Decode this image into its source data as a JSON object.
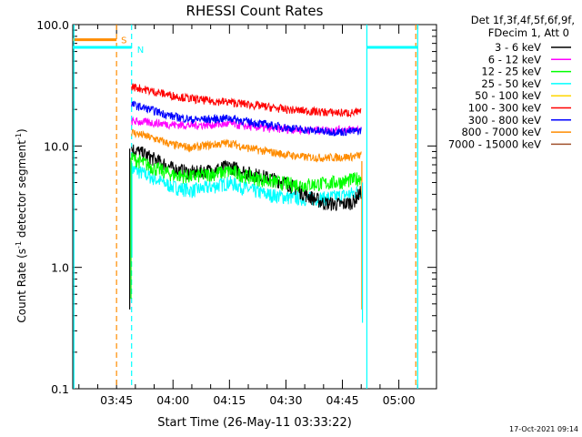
{
  "chart_data": {
    "type": "line",
    "title": "RHESSI Count Rates",
    "xlabel": "Start Time (26-May-11 03:33:22)",
    "ylabel_main": "Count Rate (s",
    "ylabel_sup1": "-1",
    "ylabel_mid": " detector segment",
    "ylabel_sup2": "-1",
    "ylabel_end": ")",
    "y_scale": "log",
    "ylim": [
      0.1,
      100
    ],
    "xlim": [
      "03:33:22",
      "05:10:00"
    ],
    "x_ticks": [
      "03:45",
      "04:00",
      "04:15",
      "04:30",
      "04:45",
      "05:00"
    ],
    "y_ticks": [
      "0.1",
      "1.0",
      "10.0",
      "100.0"
    ],
    "legend_position": "right",
    "legend_header": [
      "Det 1f,3f,4f,5f,6f,9f,",
      "FDecim 1, Att 0"
    ],
    "series": [
      {
        "name": "3 - 6 keV",
        "color": "#000000",
        "x": [
          "03:49",
          "03:55",
          "04:00",
          "04:05",
          "04:10",
          "04:15",
          "04:20",
          "04:25",
          "04:30",
          "04:35",
          "04:40",
          "04:45",
          "04:48",
          "04:50"
        ],
        "values": [
          9.5,
          7.8,
          6.5,
          6.0,
          6.3,
          6.8,
          6.0,
          5.5,
          5.0,
          4.0,
          3.4,
          3.3,
          3.5,
          4.2
        ]
      },
      {
        "name": "6 - 12 keV",
        "color": "#ff00ff",
        "x": [
          "03:49",
          "03:55",
          "04:00",
          "04:05",
          "04:10",
          "04:15",
          "04:20",
          "04:25",
          "04:30",
          "04:35",
          "04:40",
          "04:45",
          "04:48",
          "04:50"
        ],
        "values": [
          16,
          15.5,
          15,
          14.8,
          15,
          15.2,
          14.5,
          14,
          13.8,
          13.6,
          13.5,
          13.6,
          13.7,
          13.8
        ]
      },
      {
        "name": "12 - 25 keV",
        "color": "#00ff00",
        "x": [
          "03:49",
          "03:55",
          "04:00",
          "04:05",
          "04:10",
          "04:15",
          "04:20",
          "04:25",
          "04:30",
          "04:35",
          "04:40",
          "04:45",
          "04:48",
          "04:50"
        ],
        "values": [
          8.0,
          6.6,
          5.8,
          5.6,
          5.9,
          6.2,
          5.6,
          5.2,
          4.9,
          4.8,
          4.9,
          5.1,
          5.3,
          5.5
        ]
      },
      {
        "name": "25 - 50 keV",
        "color": "#00ffff",
        "x": [
          "03:49",
          "03:55",
          "04:00",
          "04:05",
          "04:10",
          "04:15",
          "04:20",
          "04:25",
          "04:30",
          "04:35",
          "04:40",
          "04:45",
          "04:48",
          "04:50"
        ],
        "values": [
          6.5,
          5.4,
          4.6,
          4.3,
          4.6,
          5.0,
          4.4,
          4.0,
          3.8,
          3.7,
          3.7,
          3.9,
          4.1,
          4.4
        ]
      },
      {
        "name": "50 - 100 keV",
        "color": "#ffd700",
        "x": [],
        "values": []
      },
      {
        "name": "100 - 300 keV",
        "color": "#ff0000",
        "x": [
          "03:49",
          "03:55",
          "04:00",
          "04:05",
          "04:10",
          "04:15",
          "04:20",
          "04:25",
          "04:30",
          "04:35",
          "04:40",
          "04:45",
          "04:48",
          "04:50"
        ],
        "values": [
          31,
          28,
          26,
          24.5,
          23.5,
          23,
          22,
          21,
          20,
          19.5,
          19,
          18.8,
          18.8,
          19
        ]
      },
      {
        "name": "300 - 800 keV",
        "color": "#0000ff",
        "x": [
          "03:49",
          "03:55",
          "04:00",
          "04:05",
          "04:10",
          "04:15",
          "04:20",
          "04:25",
          "04:30",
          "04:35",
          "04:40",
          "04:45",
          "04:48",
          "04:50"
        ],
        "values": [
          22,
          19.5,
          17.5,
          16.5,
          16.6,
          17,
          15.8,
          15,
          14.2,
          13.6,
          13.2,
          13.1,
          13.2,
          13.4
        ]
      },
      {
        "name": "800 - 7000 keV",
        "color": "#ff8c00",
        "x": [
          "03:49",
          "03:55",
          "04:00",
          "04:05",
          "04:10",
          "04:15",
          "04:20",
          "04:25",
          "04:30",
          "04:35",
          "04:40",
          "04:45",
          "04:48",
          "04:50"
        ],
        "values": [
          13,
          11.5,
          10.2,
          9.7,
          10.2,
          10.6,
          9.6,
          9.0,
          8.5,
          8.1,
          8.0,
          8.1,
          8.2,
          8.4
        ]
      },
      {
        "name": "7000 - 15000 keV",
        "color": "#a0522d",
        "x": [],
        "values": []
      }
    ],
    "annotations": {
      "saa": {
        "label": "S",
        "color": "#ff8c00",
        "level": 75,
        "x_start": "03:33:22",
        "x_end": "03:45:00",
        "x_markers": [
          "03:45:00",
          "05:04:30"
        ]
      },
      "night": {
        "label": "N",
        "color": "#00ffff",
        "level": 65,
        "segments": [
          [
            "03:33:22",
            "03:49:00"
          ],
          [
            "04:51:30",
            "05:05:00"
          ]
        ],
        "x_markers": [
          "03:33:40",
          "03:49:00",
          "04:51:30",
          "05:05:00"
        ]
      }
    }
  },
  "timestamp": "17-Oct-2021 09:14"
}
